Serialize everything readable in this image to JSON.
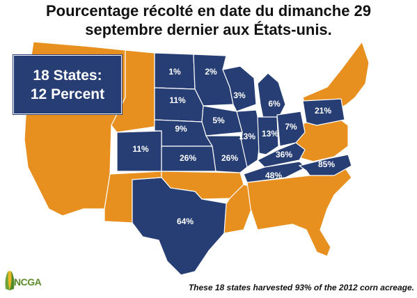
{
  "title_line1": "Pourcentage récolté en date du dimanche 29",
  "title_line2": "septembre dernier aux États-unis.",
  "legend": {
    "line1": "18 States:",
    "line2": "12 Percent"
  },
  "footnote": "These 18 states harvested 93% of the 2012 corn acreage.",
  "logo_text": "NCGA",
  "colors": {
    "highlighted_states": "#263e73",
    "other_states": "#e8901f",
    "borders": "#ffffff"
  },
  "states": [
    {
      "name": "ND",
      "value": "1%"
    },
    {
      "name": "MN",
      "value": "2%"
    },
    {
      "name": "WI",
      "value": "3%"
    },
    {
      "name": "MI",
      "value": "6%"
    },
    {
      "name": "PA",
      "value": "21%"
    },
    {
      "name": "SD",
      "value": "11%"
    },
    {
      "name": "IA",
      "value": "5%"
    },
    {
      "name": "NE",
      "value": "9%"
    },
    {
      "name": "IL",
      "value": "13%"
    },
    {
      "name": "IN",
      "value": "13%"
    },
    {
      "name": "OH",
      "value": "7%"
    },
    {
      "name": "CO",
      "value": "11%"
    },
    {
      "name": "KS",
      "value": "26%"
    },
    {
      "name": "MO",
      "value": "26%"
    },
    {
      "name": "KY",
      "value": "36%"
    },
    {
      "name": "TN",
      "value": "48%"
    },
    {
      "name": "NC",
      "value": "85%"
    },
    {
      "name": "TX",
      "value": "64%"
    }
  ]
}
